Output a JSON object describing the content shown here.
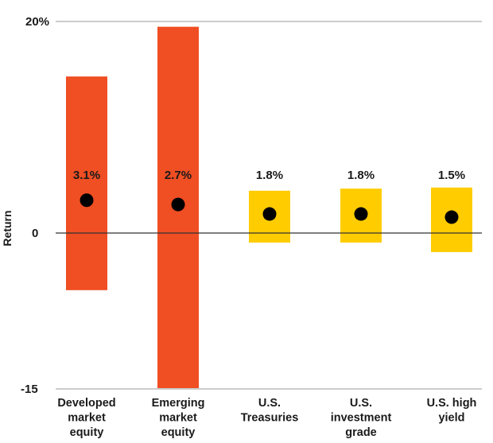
{
  "chart_data": {
    "type": "bar",
    "ylabel": "Return",
    "ylim": [
      -15,
      20
    ],
    "y_ticks": [
      "20%",
      "0",
      "-15"
    ],
    "grid": false,
    "categories": [
      [
        "Developed",
        "market",
        "equity"
      ],
      [
        "Emerging",
        "market",
        "equity"
      ],
      [
        "U.S.",
        "Treasuries"
      ],
      [
        "U.S.",
        "investment",
        "grade"
      ],
      [
        "U.S. high",
        "yield"
      ]
    ],
    "range_low": [
      -5.4,
      -15.0,
      -0.9,
      -0.9,
      -1.8
    ],
    "range_high": [
      14.8,
      19.5,
      4.0,
      4.2,
      4.3
    ],
    "median": [
      3.1,
      2.7,
      1.8,
      1.8,
      1.5
    ],
    "median_labels": [
      "3.1%",
      "2.7%",
      "1.8%",
      "1.8%",
      "1.5%"
    ],
    "colors": [
      "#f04e23",
      "#f04e23",
      "#ffcc00",
      "#ffcc00",
      "#ffcc00"
    ],
    "dot_color": "#000000"
  }
}
